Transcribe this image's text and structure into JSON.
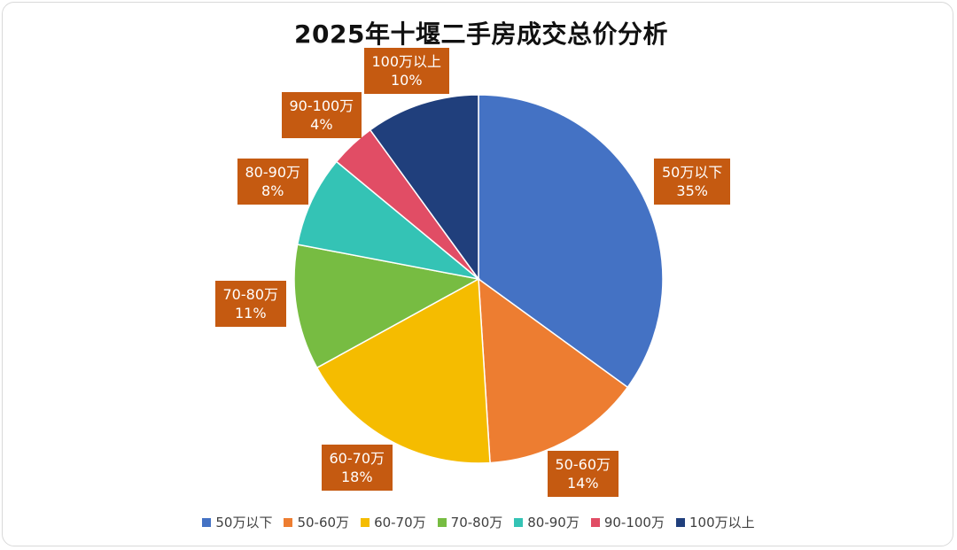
{
  "chart_data": {
    "type": "pie",
    "title": "2025年十堰二手房成交总价分析",
    "categories": [
      "50万以下",
      "50-60万",
      "60-70万",
      "70-80万",
      "80-90万",
      "90-100万",
      "100万以上"
    ],
    "values": [
      35,
      14,
      18,
      11,
      8,
      4,
      10
    ],
    "value_labels": [
      "35%",
      "14%",
      "18%",
      "11%",
      "8%",
      "4%",
      "10%"
    ],
    "colors": [
      "#4472c4",
      "#ed7d31",
      "#f5bc00",
      "#77bc42",
      "#34c3b5",
      "#e14d65",
      "#203f7c"
    ],
    "label_color": "#c55a11",
    "start_angle": "12 o'clock",
    "direction": "clockwise",
    "legend": "bottom"
  }
}
